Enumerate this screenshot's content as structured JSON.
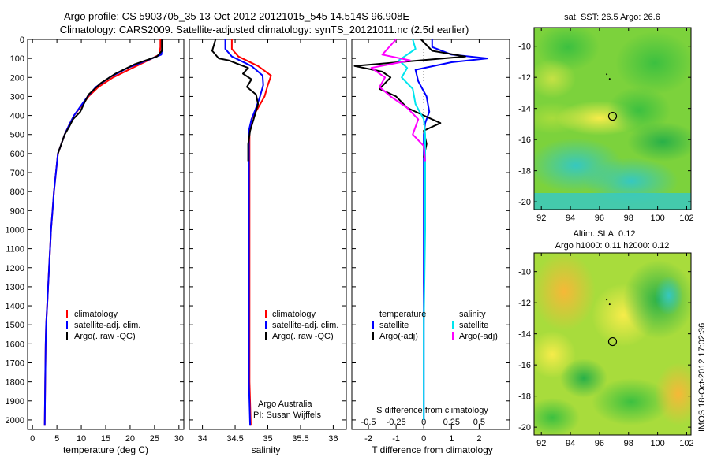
{
  "title": {
    "line1": "Argo profile: CS 5903705_35 13-Oct-2012 20121015_545 14.514S 96.908E",
    "line2": "Climatology: CARS2009. Satellite-adjusted climatology: synTS_20121011.nc (2.5d earlier)"
  },
  "colors": {
    "climatology": "#ff0000",
    "satellite": "#0000ff",
    "argo": "#000000",
    "sal_satellite": "#00e5ee",
    "sal_argo": "#ff00ff"
  },
  "credit": "IMOS 18-Oct-2012 17:02:36",
  "chart_data": [
    {
      "type": "line",
      "name": "temperature-profile",
      "xlabel": "temperature (deg C)",
      "ylabel": "",
      "xlim": [
        -1,
        31
      ],
      "ylim": [
        2050,
        0
      ],
      "xticks": [
        0,
        5,
        10,
        15,
        20,
        25,
        30
      ],
      "yticks": [
        0,
        100,
        200,
        300,
        400,
        500,
        600,
        700,
        800,
        900,
        1000,
        1100,
        1200,
        1300,
        1400,
        1500,
        1600,
        1700,
        1800,
        1900,
        2000
      ],
      "legend": [
        "climatology",
        "satellite-adj. clim.",
        "Argo(..raw -QC)"
      ],
      "legend_position": "lower-right",
      "series": [
        {
          "name": "climatology",
          "color": "#ff0000",
          "x": [
            26.2,
            26.2,
            26.0,
            24.5,
            20.5,
            16.5,
            13.5,
            11.5,
            10.0,
            8.5,
            7.5,
            6.6,
            5.9,
            5.2,
            4.8,
            4.4,
            4.1,
            3.8,
            3.6,
            3.4,
            3.2,
            3.0,
            2.8,
            2.7,
            2.6,
            2.5
          ],
          "y": [
            0,
            40,
            80,
            100,
            150,
            200,
            250,
            300,
            350,
            400,
            450,
            500,
            550,
            600,
            700,
            800,
            900,
            1000,
            1100,
            1200,
            1300,
            1400,
            1500,
            1600,
            1800,
            2030
          ]
        },
        {
          "name": "satellite-adj. clim.",
          "color": "#0000ff",
          "x": [
            26.6,
            26.6,
            26.4,
            24.5,
            19.5,
            15.8,
            13.0,
            11.3,
            9.9,
            8.5,
            7.5,
            6.6,
            5.9,
            5.2,
            4.8,
            4.4,
            4.1,
            3.8,
            3.6,
            3.4,
            3.2,
            3.0,
            2.8,
            2.7,
            2.6,
            2.5
          ],
          "y": [
            0,
            40,
            80,
            100,
            150,
            200,
            250,
            300,
            350,
            400,
            450,
            500,
            550,
            600,
            700,
            800,
            900,
            1000,
            1100,
            1200,
            1300,
            1400,
            1500,
            1600,
            1800,
            2030
          ]
        },
        {
          "name": "Argo(..raw -QC)",
          "color": "#000000",
          "x": [
            26.5,
            26.5,
            25.5,
            21.0,
            17.0,
            14.0,
            11.5,
            10.5,
            9.8,
            8.3,
            7.5,
            6.6,
            5.9,
            5.2
          ],
          "y": [
            0,
            60,
            90,
            130,
            180,
            230,
            290,
            340,
            380,
            420,
            460,
            500,
            550,
            600
          ]
        }
      ]
    },
    {
      "type": "line",
      "name": "salinity-profile",
      "xlabel": "salinity",
      "xlim": [
        33.8,
        36.2
      ],
      "ylim": [
        2050,
        0
      ],
      "xticks": [
        34,
        34.5,
        35,
        35.5,
        36
      ],
      "legend": [
        "climatology",
        "satellite-adj. clim.",
        "Argo(..raw -QC)"
      ],
      "legend_position": "lower-right",
      "annotation": [
        "Argo Australia",
        "PI: Susan Wijffels"
      ],
      "series": [
        {
          "name": "climatology",
          "color": "#ff0000",
          "x": [
            34.45,
            34.45,
            34.55,
            34.85,
            35.05,
            35.0,
            34.95,
            34.85,
            34.75,
            34.72,
            34.72,
            34.72,
            34.72,
            34.72,
            34.72,
            34.74
          ],
          "y": [
            0,
            50,
            90,
            140,
            190,
            240,
            300,
            360,
            420,
            480,
            550,
            700,
            1000,
            1500,
            1800,
            2030
          ]
        },
        {
          "name": "satellite-adj. clim.",
          "color": "#0000ff",
          "x": [
            34.35,
            34.35,
            34.45,
            34.75,
            34.92,
            34.93,
            34.88,
            34.82,
            34.75,
            34.71,
            34.71,
            34.71,
            34.71,
            34.71,
            34.71,
            34.73
          ],
          "y": [
            0,
            50,
            90,
            140,
            190,
            240,
            300,
            360,
            420,
            480,
            550,
            700,
            1000,
            1500,
            1800,
            2030
          ]
        },
        {
          "name": "Argo(..raw -QC)",
          "color": "#000000",
          "x": [
            34.2,
            34.15,
            34.25,
            34.4,
            34.55,
            34.7,
            34.62,
            34.75,
            34.68,
            34.82,
            34.85,
            34.8,
            34.73,
            34.7,
            34.7
          ],
          "y": [
            0,
            60,
            100,
            110,
            130,
            150,
            180,
            210,
            250,
            290,
            340,
            400,
            480,
            550,
            640
          ]
        }
      ]
    },
    {
      "type": "line",
      "name": "difference-profile",
      "xlabel": "T difference from climatology",
      "top_label": "S difference from climatology",
      "xlim": [
        -2.6,
        3.1
      ],
      "ylim": [
        2050,
        0
      ],
      "xticks_t": [
        -2,
        -1,
        0,
        1,
        2
      ],
      "xticks_s": [
        "-0.5",
        "-0.25",
        "0",
        "0.25",
        "0.5"
      ],
      "xticks_s_values": [
        -2,
        -1,
        0,
        1,
        2
      ],
      "legend_left_title": "temperature",
      "legend_right_title": "salinity",
      "legend": [
        "satellite",
        "Argo(-adj)",
        "satellite",
        "Argo(-adj)"
      ],
      "series": [
        {
          "name": "satellite",
          "color": "#0000ff",
          "x": [
            0.3,
            0.3,
            1.0,
            2.3,
            1.0,
            -0.3,
            -0.2,
            0.1,
            0.2,
            0.05,
            0.0,
            0.0,
            0.0,
            0.0,
            0.0
          ],
          "y": [
            0,
            40,
            80,
            100,
            120,
            160,
            220,
            300,
            380,
            440,
            500,
            600,
            900,
            1400,
            2000
          ]
        },
        {
          "name": "Argo(-adj)",
          "color": "#000000",
          "x": [
            -0.1,
            0.3,
            1.5,
            -2.5,
            -1.5,
            -1.2,
            -1.6,
            -1.0,
            -0.6,
            0.0,
            0.6,
            0.0,
            0.1,
            0.0
          ],
          "y": [
            0,
            60,
            90,
            140,
            170,
            200,
            260,
            300,
            360,
            400,
            440,
            480,
            550,
            620
          ]
        },
        {
          "name": "satellite",
          "color": "#00e5ee",
          "x": [
            -0.4,
            -0.3,
            -0.9,
            -0.6,
            -0.8,
            -0.4,
            -0.3,
            0.0,
            0.05,
            0.05,
            0.05,
            0.0,
            0.0
          ],
          "y": [
            0,
            50,
            110,
            150,
            200,
            260,
            340,
            420,
            500,
            700,
            1000,
            1500,
            2000
          ]
        },
        {
          "name": "Argo(-adj)",
          "color": "#ff00ff",
          "x": [
            -1.0,
            -1.5,
            -0.5,
            -1.9,
            -1.4,
            -1.6,
            -1.2,
            -0.6,
            -0.2,
            -0.4,
            0.0,
            0.05
          ],
          "y": [
            0,
            80,
            110,
            150,
            200,
            250,
            300,
            360,
            420,
            500,
            560,
            640
          ]
        }
      ]
    },
    {
      "type": "heatmap",
      "name": "sst-map",
      "title": "sat. SST: 26.5 Argo: 26.6",
      "xlim": [
        91.5,
        102.3
      ],
      "ylim": [
        -20.5,
        -8.8
      ],
      "xticks": [
        92,
        94,
        96,
        98,
        100,
        102
      ],
      "yticks": [
        -10,
        -12,
        -14,
        -16,
        -18,
        -20
      ],
      "marker": {
        "x": 96.9,
        "y": -14.5
      },
      "track": [
        {
          "x": 96.5,
          "y": -11.8
        },
        {
          "x": 96.7,
          "y": -12.1
        }
      ]
    },
    {
      "type": "heatmap",
      "name": "sla-map",
      "title": "Altim. SLA: 0.12",
      "subtitle": "Argo h1000: 0.11 h2000: 0.12",
      "xlim": [
        91.5,
        102.3
      ],
      "ylim": [
        -20.5,
        -8.8
      ],
      "xticks": [
        92,
        94,
        96,
        98,
        100,
        102
      ],
      "yticks": [
        -10,
        -12,
        -14,
        -16,
        -18,
        -20
      ],
      "marker": {
        "x": 96.9,
        "y": -14.5
      },
      "track": [
        {
          "x": 96.5,
          "y": -11.8
        },
        {
          "x": 96.7,
          "y": -12.1
        }
      ]
    }
  ]
}
